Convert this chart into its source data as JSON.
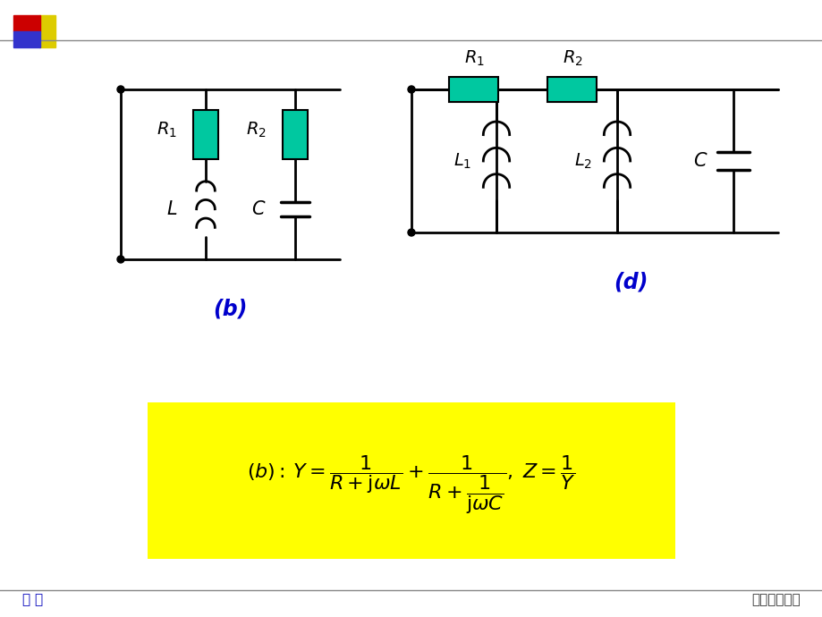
{
  "bg_color": "#ffffff",
  "teal_color": "#00C8A0",
  "line_color": "#000000",
  "blue_label_color": "#0000CC",
  "bottom_bar_color": "#C0C0C0",
  "top_line_color": "#808080",
  "title_bottom_left": "电 路",
  "title_bottom_right": "南京理工大学",
  "label_b": "(b)",
  "label_d": "(d)",
  "yellow_box_color": "#FFFF00",
  "formula_color": "#000000"
}
